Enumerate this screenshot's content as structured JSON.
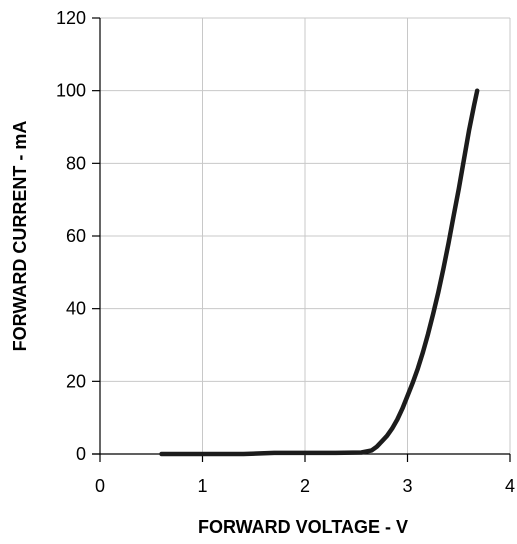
{
  "chart_data": {
    "type": "line",
    "title": "",
    "xlabel": "FORWARD VOLTAGE - V",
    "ylabel": "FORWARD CURRENT - mA",
    "xlim": [
      0,
      4
    ],
    "ylim": [
      0,
      120
    ],
    "xticks": [
      "0",
      "1",
      "2",
      "3",
      "4"
    ],
    "yticks": [
      "0",
      "20",
      "40",
      "60",
      "80",
      "100",
      "120"
    ],
    "grid": true,
    "series": [
      {
        "x": [
          0.6,
          1.0,
          1.4,
          1.7,
          2.0,
          2.3,
          2.55,
          2.65,
          2.7,
          2.75,
          2.8,
          2.85,
          2.9,
          2.95,
          3.0,
          3.05,
          3.1,
          3.15,
          3.2,
          3.25,
          3.3,
          3.35,
          3.4,
          3.45,
          3.5,
          3.55,
          3.6,
          3.65,
          3.68
        ],
        "y": [
          0,
          0,
          0,
          0.3,
          0.3,
          0.3,
          0.4,
          1.0,
          2.0,
          3.5,
          5.0,
          7.0,
          9.5,
          12.5,
          16.0,
          19.5,
          23.5,
          28.0,
          33.0,
          38.5,
          44.5,
          51.0,
          58.0,
          65.5,
          73.0,
          81.0,
          89.0,
          96.0,
          100.0
        ],
        "color": "#1c1c1c"
      }
    ]
  }
}
